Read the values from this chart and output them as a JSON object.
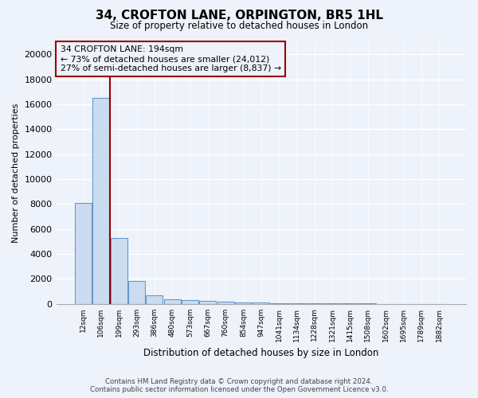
{
  "title": "34, CROFTON LANE, ORPINGTON, BR5 1HL",
  "subtitle": "Size of property relative to detached houses in London",
  "xlabel": "Distribution of detached houses by size in London",
  "ylabel": "Number of detached properties",
  "bin_labels": [
    "12sqm",
    "106sqm",
    "199sqm",
    "293sqm",
    "386sqm",
    "480sqm",
    "573sqm",
    "667sqm",
    "760sqm",
    "854sqm",
    "947sqm",
    "1041sqm",
    "1134sqm",
    "1228sqm",
    "1321sqm",
    "1415sqm",
    "1508sqm",
    "1602sqm",
    "1695sqm",
    "1789sqm",
    "1882sqm"
  ],
  "bar_values": [
    8100,
    16500,
    5300,
    1850,
    650,
    350,
    280,
    220,
    170,
    130,
    80,
    60,
    45,
    35,
    25,
    18,
    12,
    10,
    8,
    6,
    5
  ],
  "bar_color": "#ccdcf0",
  "bar_edge_color": "#6699cc",
  "property_label": "34 CROFTON LANE: 194sqm",
  "annotation_line1": "← 73% of detached houses are smaller (24,012)",
  "annotation_line2": "27% of semi-detached houses are larger (8,837) →",
  "red_line_color": "#990000",
  "ylim": [
    0,
    21000
  ],
  "yticks": [
    0,
    2000,
    4000,
    6000,
    8000,
    10000,
    12000,
    14000,
    16000,
    18000,
    20000
  ],
  "footer_line1": "Contains HM Land Registry data © Crown copyright and database right 2024.",
  "footer_line2": "Contains public sector information licensed under the Open Government Licence v3.0.",
  "bg_color": "#eef2fa",
  "grid_color": "#d8e0ee",
  "plot_bg_color": "#eef2fa"
}
